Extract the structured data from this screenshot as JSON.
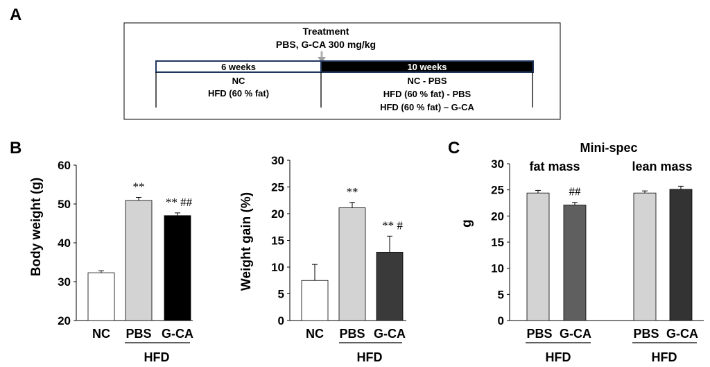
{
  "panels": {
    "a": "A",
    "b": "B",
    "c": "C"
  },
  "schematic": {
    "treatment_title": "Treatment",
    "treatment_detail": "PBS, G-CA 300 mg/kg",
    "phase1_label": "6 weeks",
    "phase2_label": "10 weeks",
    "phase1_groups": [
      "NC",
      "HFD (60 % fat)"
    ],
    "phase2_groups": [
      "NC - PBS",
      "HFD (60 % fat) - PBS",
      "HFD (60 % fat) – G-CA"
    ]
  },
  "colors": {
    "nc": "#ffffff",
    "pbs": "#d3d3d3",
    "gca_body": "#000000",
    "gca_gain": "#3a3a3a",
    "gca_fat": "#5f5f5f",
    "gca_lean": "#333333"
  },
  "chart_data": [
    {
      "type": "bar",
      "id": "body_weight",
      "ylabel": "Body weight (g)",
      "ylim": [
        20,
        60
      ],
      "yticks": [
        20,
        30,
        40,
        50,
        60
      ],
      "categories": [
        "NC",
        "PBS",
        "G-CA"
      ],
      "values": [
        32.3,
        50.9,
        47.0
      ],
      "errors": [
        0.5,
        0.8,
        0.7
      ],
      "significance": [
        "",
        "**",
        "** ##"
      ],
      "group_label": "HFD"
    },
    {
      "type": "bar",
      "id": "weight_gain",
      "ylabel": "Weight gain (%)",
      "ylim": [
        0,
        30
      ],
      "yticks": [
        0,
        5,
        10,
        15,
        20,
        25,
        30
      ],
      "categories": [
        "NC",
        "PBS",
        "G-CA"
      ],
      "values": [
        7.5,
        21.1,
        12.8
      ],
      "errors": [
        3.0,
        1.0,
        3.0
      ],
      "significance": [
        "",
        "**",
        "** #"
      ],
      "group_label": "HFD"
    },
    {
      "type": "bar",
      "id": "minispec",
      "title": "Mini-spec",
      "ylabel": "g",
      "ylim": [
        0,
        30
      ],
      "yticks": [
        0,
        5,
        10,
        15,
        20,
        25,
        30
      ],
      "groups": [
        "fat mass",
        "lean mass"
      ],
      "categories": [
        "PBS",
        "G-CA",
        "PBS",
        "G-CA"
      ],
      "values": [
        24.4,
        22.1,
        24.4,
        25.1
      ],
      "errors": [
        0.5,
        0.5,
        0.4,
        0.6
      ],
      "significance": [
        "",
        "##",
        "",
        ""
      ],
      "group_label": "HFD"
    }
  ]
}
